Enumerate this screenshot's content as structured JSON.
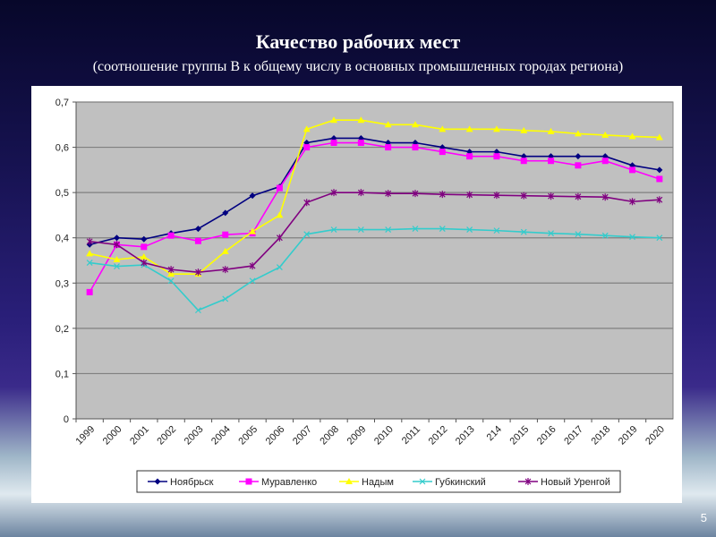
{
  "slide": {
    "title": "Качество рабочих мест",
    "subtitle": "(соотношение группы В к общему числу в основных промышленных городах региона)",
    "page_number": "5"
  },
  "chart_data": {
    "type": "line",
    "title": "",
    "xlabel": "",
    "ylabel": "",
    "ylim": [
      0,
      0.7
    ],
    "yticks": [
      "0",
      "0,1",
      "0,2",
      "0,3",
      "0,4",
      "0,5",
      "0,6",
      "0,7"
    ],
    "grid": true,
    "legend_position": "bottom",
    "categories": [
      "1999",
      "2000",
      "2001",
      "2002",
      "2003",
      "2004",
      "2005",
      "2006",
      "2007",
      "2008",
      "2009",
      "2010",
      "2011",
      "2012",
      "2013",
      "214",
      "2015",
      "2016",
      "2017",
      "2018",
      "2019",
      "2020"
    ],
    "series": [
      {
        "name": "Ноябрьск",
        "color": "#000080",
        "marker": "diamond",
        "values": [
          0.385,
          0.4,
          0.397,
          0.41,
          0.42,
          0.455,
          0.493,
          0.513,
          0.61,
          0.62,
          0.62,
          0.61,
          0.61,
          0.6,
          0.59,
          0.59,
          0.58,
          0.58,
          0.58,
          0.58,
          0.56,
          0.55
        ]
      },
      {
        "name": "Муравленко",
        "color": "#ff00ff",
        "marker": "square",
        "values": [
          0.28,
          0.385,
          0.38,
          0.405,
          0.393,
          0.407,
          0.41,
          0.51,
          0.6,
          0.61,
          0.61,
          0.6,
          0.6,
          0.59,
          0.58,
          0.58,
          0.57,
          0.57,
          0.56,
          0.57,
          0.55,
          0.53
        ]
      },
      {
        "name": "Надым",
        "color": "#ffff00",
        "marker": "triangle",
        "values": [
          0.365,
          0.352,
          0.358,
          0.32,
          0.32,
          0.37,
          0.414,
          0.45,
          0.64,
          0.66,
          0.66,
          0.65,
          0.65,
          0.64,
          0.64,
          0.64,
          0.637,
          0.635,
          0.63,
          0.627,
          0.624,
          0.622
        ]
      },
      {
        "name": "Губкинский",
        "color": "#33cccc",
        "marker": "x",
        "values": [
          0.345,
          0.337,
          0.34,
          0.305,
          0.24,
          0.265,
          0.305,
          0.335,
          0.408,
          0.418,
          0.418,
          0.418,
          0.42,
          0.42,
          0.418,
          0.416,
          0.413,
          0.41,
          0.408,
          0.405,
          0.402,
          0.4
        ]
      },
      {
        "name": "Новый Уренгой",
        "color": "#800080",
        "marker": "star",
        "values": [
          0.392,
          0.385,
          0.345,
          0.33,
          0.324,
          0.33,
          0.338,
          0.4,
          0.478,
          0.5,
          0.5,
          0.498,
          0.498,
          0.496,
          0.495,
          0.494,
          0.493,
          0.492,
          0.491,
          0.49,
          0.48,
          0.484
        ]
      }
    ]
  }
}
